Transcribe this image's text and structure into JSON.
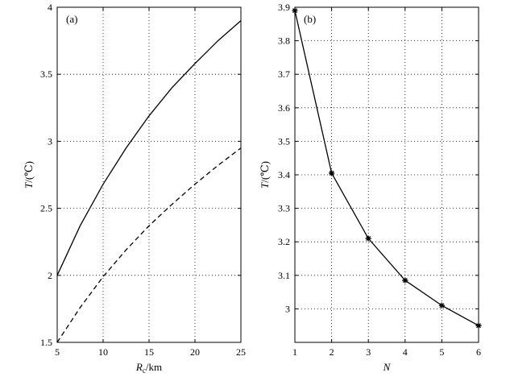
{
  "chart_data": [
    {
      "type": "line",
      "panel_label": "(a)",
      "xlabel": {
        "main": "R",
        "sub": "c",
        "rest": "/km"
      },
      "ylabel": "T/(℃)",
      "xlim": [
        5,
        25
      ],
      "ylim": [
        1.5,
        4
      ],
      "xticks": [
        5,
        10,
        15,
        20,
        25
      ],
      "yticks": [
        1.5,
        2,
        2.5,
        3,
        3.5,
        4
      ],
      "ytick_labels": [
        "1.5",
        "2",
        "2.5",
        "3",
        "3.5",
        "4"
      ],
      "grid": true,
      "series": [
        {
          "style": "solid",
          "x": [
            5,
            7.5,
            10,
            12.5,
            15,
            17.5,
            20,
            22.5,
            25
          ],
          "values": [
            2.0,
            2.37,
            2.68,
            2.95,
            3.19,
            3.4,
            3.58,
            3.75,
            3.9
          ]
        },
        {
          "style": "dashed",
          "x": [
            5,
            7.5,
            10,
            12.5,
            15,
            17.5,
            20,
            22.5,
            25
          ],
          "values": [
            1.5,
            1.76,
            1.99,
            2.19,
            2.37,
            2.53,
            2.68,
            2.82,
            2.95
          ]
        }
      ]
    },
    {
      "type": "line",
      "panel_label": "(b)",
      "xlabel": {
        "main": "N",
        "sub": "",
        "rest": ""
      },
      "ylabel": "T/(℃)",
      "xlim": [
        1,
        6
      ],
      "ylim": [
        2.9,
        3.9
      ],
      "xticks": [
        1,
        2,
        3,
        4,
        5,
        6
      ],
      "yticks": [
        2.9,
        3.0,
        3.1,
        3.2,
        3.3,
        3.4,
        3.5,
        3.6,
        3.7,
        3.8,
        3.9
      ],
      "ytick_labels": [
        "",
        "3",
        "3.1",
        "3.2",
        "3.3",
        "3.4",
        "3.5",
        "3.6",
        "3.7",
        "3.8",
        "3.9"
      ],
      "grid": true,
      "series": [
        {
          "style": "solid",
          "marker": "star",
          "x": [
            1,
            2,
            3,
            4,
            5,
            6
          ],
          "values": [
            3.89,
            3.405,
            3.21,
            3.085,
            3.01,
            2.95
          ]
        }
      ]
    }
  ]
}
